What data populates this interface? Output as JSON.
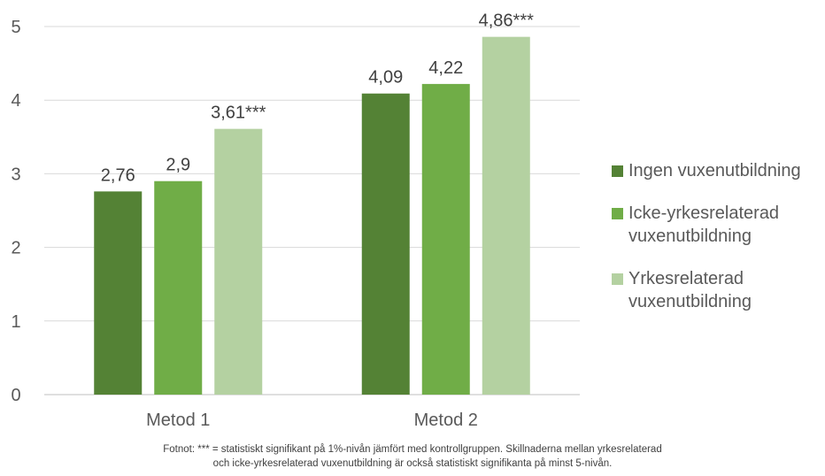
{
  "chart_data": {
    "type": "bar",
    "categories": [
      "Metod 1",
      "Metod 2"
    ],
    "series": [
      {
        "name": "Ingen vuxenutbildning",
        "values": [
          2.76,
          4.09
        ],
        "labels": [
          "2,76",
          "4,09"
        ],
        "color": "#548235"
      },
      {
        "name": "Icke-yrkesrelaterad vuxenutbildning",
        "values": [
          2.9,
          4.22
        ],
        "labels": [
          "2,9",
          "4,22"
        ],
        "color": "#70ad47"
      },
      {
        "name": "Yrkesrelaterad vuxenutbildning",
        "values": [
          3.61,
          4.86
        ],
        "labels": [
          "3,61***",
          "4,86***"
        ],
        "color": "#b4d1a1"
      }
    ],
    "ylim": [
      0,
      5
    ],
    "yticks": [
      0,
      1,
      2,
      3,
      4,
      5
    ],
    "grid": true,
    "legend_position": "right",
    "title": "",
    "xlabel": "",
    "ylabel": ""
  },
  "legend": [
    {
      "label": "Ingen vuxenutbildning",
      "color": "#548235"
    },
    {
      "label": "Icke-yrkesrelaterad vuxenutbildning",
      "color": "#70ad47"
    },
    {
      "label": "Yrkesrelaterad vuxenutbildning",
      "color": "#b4d1a1"
    }
  ],
  "footnote": {
    "line1": "Fotnot: *** = statistiskt signifikant på 1%-nivån jämfört med kontrollgruppen. Skillnaderna mellan yrkesrelaterad",
    "line2": "och icke-yrkesrelaterad vuxenutbildning är också statistiskt signifikanta på minst 5-nivån."
  }
}
